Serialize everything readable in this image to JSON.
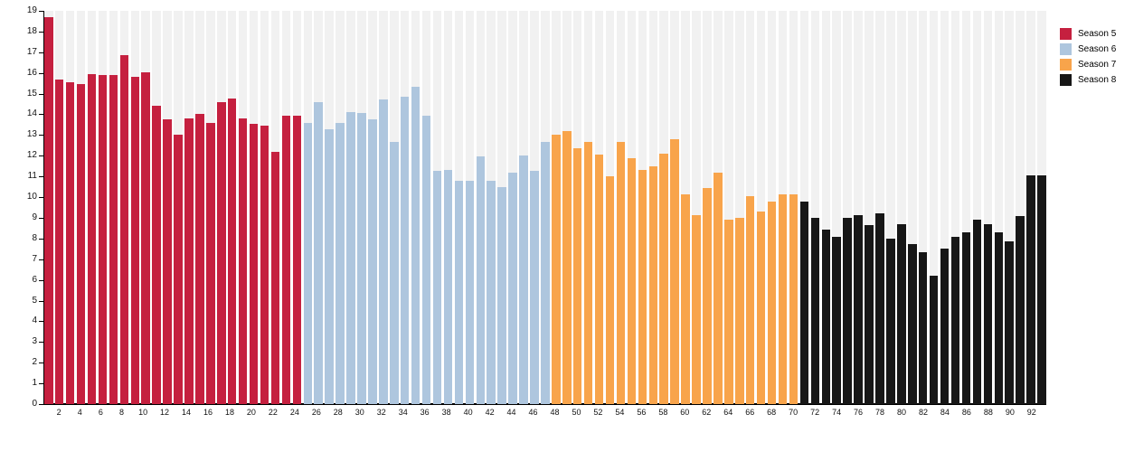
{
  "chart_data": {
    "type": "bar",
    "title": "",
    "xlabel": "",
    "ylabel": "",
    "x_unit": "episode-number",
    "x_range": [
      1,
      93
    ],
    "ylim": [
      0,
      19
    ],
    "grid": "light-gray full-height column stripes behind each bar",
    "legend_position": "top-right",
    "series": [
      {
        "name": "Season 5",
        "color": "#C5203F",
        "episode_start": 1,
        "values": [
          18.7,
          15.7,
          15.55,
          15.45,
          15.95,
          15.9,
          15.9,
          16.85,
          15.8,
          16.05,
          14.4,
          13.75,
          13.0,
          13.8,
          14.0,
          13.6,
          14.6,
          14.75,
          13.8,
          13.55,
          13.45,
          12.2,
          13.95,
          13.95
        ]
      },
      {
        "name": "Season 6",
        "color": "#AEC6DE",
        "episode_start": 25,
        "values": [
          13.6,
          14.6,
          13.3,
          13.6,
          14.1,
          14.05,
          13.75,
          14.7,
          12.65,
          14.85,
          15.35,
          13.95,
          11.25,
          11.3,
          10.8,
          10.8,
          11.95,
          10.8,
          10.5,
          11.2,
          12.0,
          11.25,
          12.65
        ]
      },
      {
        "name": "Season 7",
        "color": "#F8A44B",
        "episode_start": 48,
        "values": [
          13.0,
          13.2,
          12.35,
          12.65,
          12.05,
          11.0,
          12.65,
          11.9,
          11.3,
          11.5,
          12.1,
          12.8,
          10.15,
          9.15,
          10.45,
          11.2,
          8.9,
          9.0,
          10.05,
          9.3,
          9.8,
          10.15,
          10.15
        ]
      },
      {
        "name": "Season 8",
        "color": "#171717",
        "episode_start": 71,
        "values": [
          9.8,
          9.0,
          8.45,
          8.1,
          9.0,
          9.15,
          8.65,
          9.2,
          8.0,
          8.7,
          7.75,
          7.35,
          6.2,
          7.5,
          8.1,
          8.3,
          8.9,
          8.7,
          8.3,
          7.85,
          9.1,
          11.05,
          11.05
        ]
      }
    ],
    "yticks": [
      0,
      1,
      2,
      3,
      4,
      5,
      6,
      7,
      8,
      9,
      10,
      11,
      12,
      13,
      14,
      15,
      16,
      17,
      18,
      19
    ],
    "xticks": [
      2,
      4,
      6,
      8,
      10,
      12,
      14,
      16,
      18,
      20,
      22,
      24,
      26,
      28,
      30,
      32,
      34,
      36,
      38,
      40,
      42,
      44,
      46,
      48,
      50,
      52,
      54,
      56,
      58,
      60,
      62,
      64,
      66,
      68,
      70,
      72,
      74,
      76,
      78,
      80,
      82,
      84,
      86,
      88,
      90,
      92
    ]
  },
  "legend": {
    "items": [
      {
        "label": "Season 5",
        "color": "#C5203F"
      },
      {
        "label": "Season 6",
        "color": "#AEC6DE"
      },
      {
        "label": "Season 7",
        "color": "#F8A44B"
      },
      {
        "label": "Season 8",
        "color": "#171717"
      }
    ]
  },
  "colors": {
    "background": "#FFFFFF",
    "column_stripe": "#F1F1F1",
    "axis": "#000000",
    "tick_text": "#111111"
  }
}
